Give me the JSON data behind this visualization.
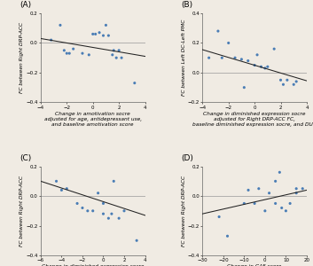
{
  "panel_A": {
    "label": "(A)",
    "x": [
      -3.2,
      -2.5,
      -2.2,
      -2.0,
      -1.8,
      -1.5,
      -0.8,
      -0.3,
      0.0,
      0.2,
      0.5,
      0.8,
      1.0,
      1.2,
      1.5,
      1.6,
      1.8,
      2.0,
      2.2,
      3.2
    ],
    "y": [
      0.02,
      0.12,
      -0.05,
      -0.07,
      -0.07,
      -0.04,
      -0.07,
      -0.08,
      0.06,
      0.06,
      0.07,
      0.05,
      0.12,
      0.05,
      -0.08,
      -0.05,
      -0.1,
      -0.05,
      -0.1,
      -0.27
    ],
    "xlim": [
      -4,
      4
    ],
    "ylim": [
      -0.4,
      0.2
    ],
    "yticks": [
      -0.4,
      -0.2,
      0.0,
      0.2
    ],
    "xticks": [
      -4,
      -2,
      0,
      2,
      4
    ],
    "xlabel": "Change in amotivation socre\nadjusted for age, antidepressant use,\nand baseline amotivation score",
    "ylabel": "FC between Right DRP-ACC",
    "trend_x": [
      -4,
      4
    ],
    "trend_y": [
      0.03,
      -0.09
    ]
  },
  "panel_B": {
    "label": "(B)",
    "x": [
      -3.5,
      -2.8,
      -2.5,
      -2.0,
      -1.5,
      -1.0,
      -0.8,
      -0.5,
      0.0,
      0.2,
      0.5,
      0.8,
      1.0,
      1.5,
      2.0,
      2.2,
      2.5,
      3.0,
      3.2
    ],
    "y": [
      0.1,
      0.28,
      0.1,
      0.2,
      0.1,
      0.09,
      -0.1,
      0.08,
      0.05,
      0.12,
      0.04,
      0.03,
      0.04,
      0.16,
      -0.05,
      -0.08,
      -0.05,
      -0.08,
      -0.06
    ],
    "xlim": [
      -4,
      4
    ],
    "ylim": [
      -0.2,
      0.4
    ],
    "yticks": [
      -0.2,
      0.0,
      0.2,
      0.4
    ],
    "xticks": [
      -4,
      -2,
      0,
      2,
      4
    ],
    "xlabel": "Change in diminished expression socre\nadjusted for Right DRP-ACC FC,\nbaseline diminished expression socre, and DUP",
    "ylabel": "FC between Left DC-Left PMC",
    "trend_x": [
      -4,
      4
    ],
    "trend_y": [
      0.155,
      -0.055
    ]
  },
  "panel_C": {
    "label": "(C)",
    "x": [
      -4.5,
      -4.0,
      -3.5,
      -2.5,
      -2.0,
      -1.5,
      -1.0,
      -0.5,
      0.0,
      0.0,
      0.5,
      0.8,
      1.0,
      1.5,
      2.0,
      3.2
    ],
    "y": [
      0.1,
      0.04,
      0.05,
      -0.05,
      -0.08,
      -0.1,
      -0.1,
      0.02,
      -0.05,
      -0.12,
      -0.15,
      -0.12,
      0.1,
      -0.15,
      -0.1,
      -0.3
    ],
    "xlim": [
      -6,
      4
    ],
    "ylim": [
      -0.4,
      0.2
    ],
    "yticks": [
      -0.4,
      -0.2,
      0.0,
      0.2
    ],
    "xticks": [
      -6,
      -4,
      -2,
      0,
      2,
      4
    ],
    "xlabel": "Change in diminished expression socre\nadjusted for Left DC-Left PMC FC,\nbaseline diminished expression socre, and DUP",
    "ylabel": "FC between Right DRP-ACC",
    "trend_x": [
      -6,
      4
    ],
    "trend_y": [
      0.1,
      -0.13
    ]
  },
  "panel_D": {
    "label": "(D)",
    "x": [
      -22,
      -18,
      -10,
      -8,
      -5,
      -3,
      0,
      2,
      5,
      5,
      7,
      8,
      10,
      12,
      15,
      15,
      18
    ],
    "y": [
      -0.14,
      -0.27,
      -0.05,
      0.04,
      -0.05,
      0.05,
      -0.1,
      0.02,
      -0.05,
      0.1,
      0.16,
      -0.08,
      -0.1,
      -0.05,
      0.05,
      0.02,
      0.05
    ],
    "xlim": [
      -30,
      20
    ],
    "ylim": [
      -0.4,
      0.2
    ],
    "yticks": [
      -0.4,
      -0.2,
      0.0,
      0.2
    ],
    "xticks": [
      -30,
      -20,
      -10,
      0,
      10,
      20
    ],
    "xlabel": "Change in GAF score\nadjusted for antidepressant use and\nbaseline GAF socre",
    "ylabel": "FC between Right DRP-ACC",
    "trend_x": [
      -30,
      20
    ],
    "trend_y": [
      -0.12,
      0.04
    ]
  },
  "dot_color": "#4A7DB5",
  "line_color": "#222222",
  "hline_color": "#999999",
  "bg_color": "#F0EBE3",
  "font_size_label": 4.2,
  "font_size_axis": 4.0,
  "font_size_panel": 6.5
}
